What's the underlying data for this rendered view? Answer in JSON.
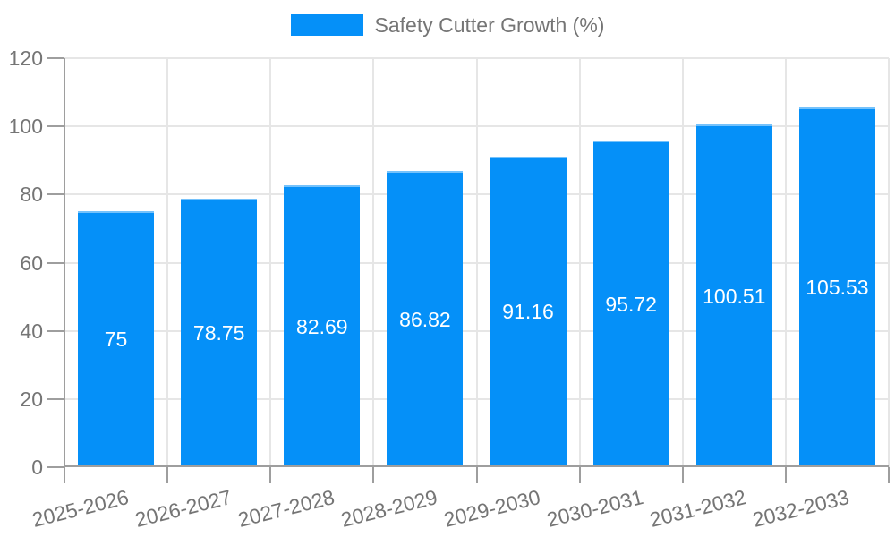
{
  "chart_data": {
    "type": "bar",
    "title": "",
    "legend": {
      "label": "Safety Cutter Growth (%)",
      "position": "top"
    },
    "categories": [
      "2025-2026",
      "2026-2027",
      "2027-2028",
      "2028-2029",
      "2029-2030",
      "2030-2031",
      "2031-2032",
      "2032-2033"
    ],
    "values": [
      75,
      78.75,
      82.69,
      86.82,
      91.16,
      95.72,
      100.51,
      105.53
    ],
    "xlabel": "",
    "ylabel": "",
    "ylim": [
      0,
      120
    ],
    "yticks": [
      0,
      20,
      40,
      60,
      80,
      100,
      120
    ],
    "grid": true,
    "x_label_rotation_deg": -14,
    "colors": {
      "bar": "#0590F8",
      "bar_top_edge": "rgba(255,255,255,0.45)",
      "value_label": "#ffffff",
      "axis": "#9e9e9e",
      "gridline": "#e6e6e6",
      "tick_label": "#757575",
      "background": "#ffffff"
    }
  }
}
